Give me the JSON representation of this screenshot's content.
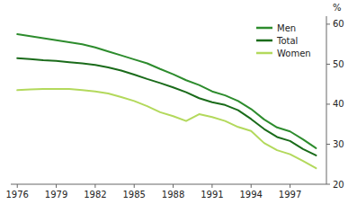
{
  "chart_data": {
    "type": "line",
    "x": [
      1976,
      1977,
      1978,
      1979,
      1980,
      1981,
      1982,
      1983,
      1984,
      1985,
      1986,
      1987,
      1988,
      1989,
      1990,
      1991,
      1992,
      1993,
      1994,
      1995,
      1996,
      1997,
      1998,
      1999
    ],
    "series": [
      {
        "name": "Men",
        "color": "#2d8c2d",
        "values": [
          57.5,
          57.0,
          56.5,
          56.0,
          55.5,
          55.0,
          54.2,
          53.2,
          52.2,
          51.2,
          50.2,
          48.8,
          47.5,
          46.0,
          44.8,
          43.2,
          42.2,
          40.8,
          38.8,
          36.2,
          34.2,
          33.2,
          31.2,
          29.0
        ]
      },
      {
        "name": "Total",
        "color": "#1a6b1a",
        "values": [
          51.5,
          51.3,
          51.0,
          50.8,
          50.5,
          50.2,
          49.8,
          49.2,
          48.4,
          47.4,
          46.3,
          45.3,
          44.2,
          43.0,
          41.5,
          40.5,
          39.8,
          38.5,
          36.3,
          33.8,
          31.8,
          30.8,
          28.8,
          27.2
        ]
      },
      {
        "name": "Women",
        "color": "#b3d95c",
        "values": [
          43.5,
          43.7,
          43.8,
          43.8,
          43.8,
          43.5,
          43.2,
          42.7,
          41.8,
          40.8,
          39.5,
          38.0,
          37.0,
          35.8,
          37.5,
          36.8,
          35.8,
          34.3,
          33.3,
          30.3,
          28.5,
          27.5,
          25.8,
          24.0
        ]
      }
    ],
    "y_label": "%",
    "xlim": [
      1975.5,
      1999.8
    ],
    "xticks": [
      1976,
      1979,
      1982,
      1985,
      1988,
      1991,
      1994,
      1997
    ],
    "ylim": [
      20,
      62
    ],
    "yticks": [
      20,
      30,
      40,
      50,
      60
    ],
    "grid": false,
    "legend": "upper right"
  }
}
